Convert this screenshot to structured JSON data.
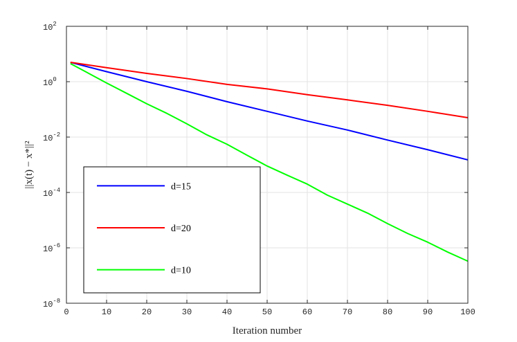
{
  "chart_data": {
    "type": "line",
    "title": "",
    "xlabel": "Iteration number",
    "ylabel": "||x(t) − x*||²",
    "xlim": [
      0,
      100
    ],
    "ylim": [
      1e-08,
      100
    ],
    "yscale": "log",
    "grid": true,
    "legend_position": "lower-left",
    "x_ticks": [
      0,
      10,
      20,
      30,
      40,
      50,
      60,
      70,
      80,
      90,
      100
    ],
    "y_ticks": [
      {
        "value": 100.0,
        "base": "10",
        "exp": "2"
      },
      {
        "value": 1.0,
        "base": "10",
        "exp": "0"
      },
      {
        "value": 0.01,
        "base": "10",
        "exp": "-2"
      },
      {
        "value": 0.0001,
        "base": "10",
        "exp": "-4"
      },
      {
        "value": 1e-06,
        "base": "10",
        "exp": "-6"
      },
      {
        "value": 1e-08,
        "base": "10",
        "exp": "-8"
      }
    ],
    "series": [
      {
        "name": "d=15",
        "color": "#0000ff",
        "points": [
          [
            1,
            5.0
          ],
          [
            10,
            2.3
          ],
          [
            20,
            1.0
          ],
          [
            30,
            0.45
          ],
          [
            40,
            0.19
          ],
          [
            50,
            0.085
          ],
          [
            60,
            0.038
          ],
          [
            70,
            0.018
          ],
          [
            80,
            0.0078
          ],
          [
            90,
            0.0035
          ],
          [
            100,
            0.0015
          ]
        ]
      },
      {
        "name": "d=20",
        "color": "#ff0000",
        "points": [
          [
            1,
            5.0
          ],
          [
            10,
            3.2
          ],
          [
            20,
            2.0
          ],
          [
            30,
            1.3
          ],
          [
            40,
            0.8
          ],
          [
            50,
            0.55
          ],
          [
            60,
            0.34
          ],
          [
            70,
            0.22
          ],
          [
            80,
            0.14
          ],
          [
            90,
            0.085
          ],
          [
            100,
            0.05
          ]
        ]
      },
      {
        "name": "d=10",
        "color": "#00ff00",
        "points": [
          [
            1,
            4.5
          ],
          [
            5,
            2.2
          ],
          [
            10,
            0.9
          ],
          [
            15,
            0.38
          ],
          [
            20,
            0.16
          ],
          [
            25,
            0.072
          ],
          [
            30,
            0.03
          ],
          [
            35,
            0.012
          ],
          [
            40,
            0.0055
          ],
          [
            45,
            0.0022
          ],
          [
            50,
            0.0009
          ],
          [
            55,
            0.00042
          ],
          [
            60,
            0.0002
          ],
          [
            65,
            8e-05
          ],
          [
            70,
            3.8e-05
          ],
          [
            75,
            1.8e-05
          ],
          [
            80,
            7.5e-06
          ],
          [
            85,
            3.3e-06
          ],
          [
            90,
            1.6e-06
          ],
          [
            95,
            7e-07
          ],
          [
            100,
            3.3e-07
          ]
        ]
      }
    ]
  }
}
